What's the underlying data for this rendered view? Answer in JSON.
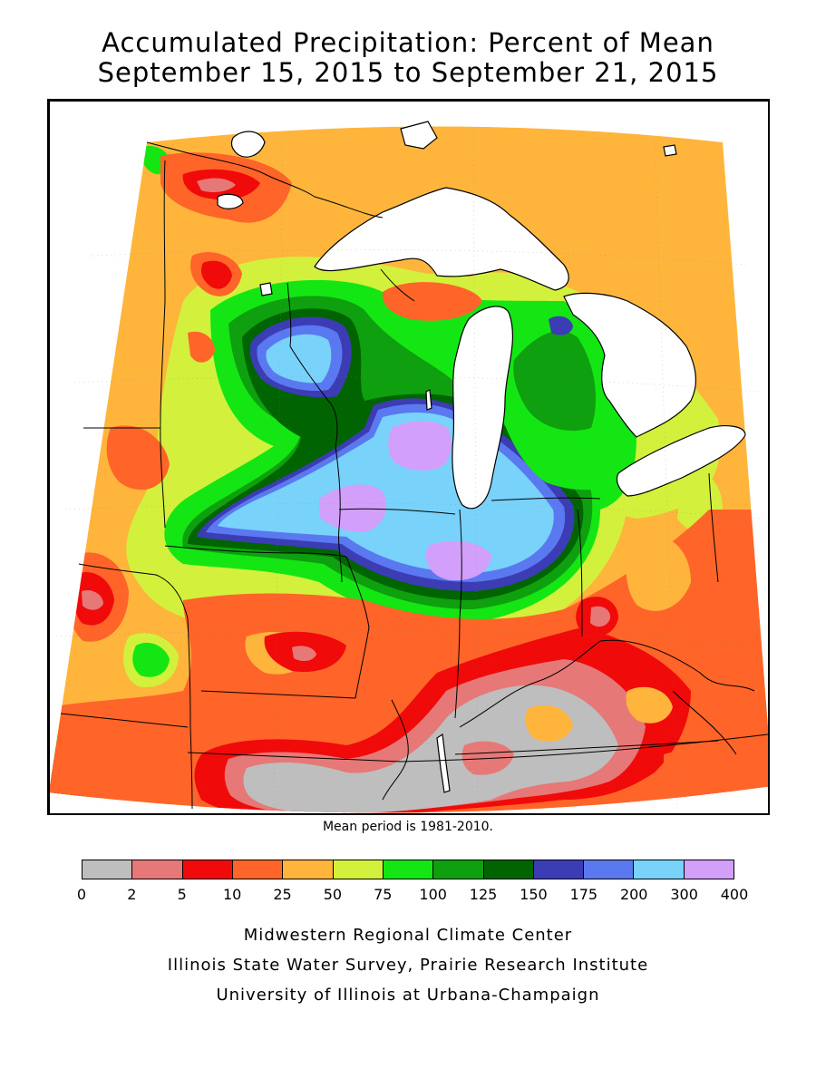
{
  "title": {
    "line1": "Accumulated Precipitation: Percent of Mean",
    "line2": "September 15, 2015 to September 21, 2015"
  },
  "map": {
    "lake_color": "#ffffff",
    "outline_color": "#000000"
  },
  "note": "Mean period is 1981-2010.",
  "legend": {
    "colors": [
      "#bebebe",
      "#e67878",
      "#f00a0a",
      "#ff6428",
      "#ffb43c",
      "#d2f03c",
      "#14e614",
      "#0fa00f",
      "#006400",
      "#3c3cb4",
      "#5a78f0",
      "#78d2fa",
      "#d2a0fa"
    ],
    "ticks": [
      "0",
      "2",
      "5",
      "10",
      "25",
      "50",
      "75",
      "100",
      "125",
      "150",
      "175",
      "200",
      "300",
      "400"
    ]
  },
  "credits": {
    "line1": "Midwestern Regional Climate Center",
    "line2": "Illinois State Water Survey, Prairie Research Institute",
    "line3": "University of Illinois at Urbana-Champaign"
  }
}
